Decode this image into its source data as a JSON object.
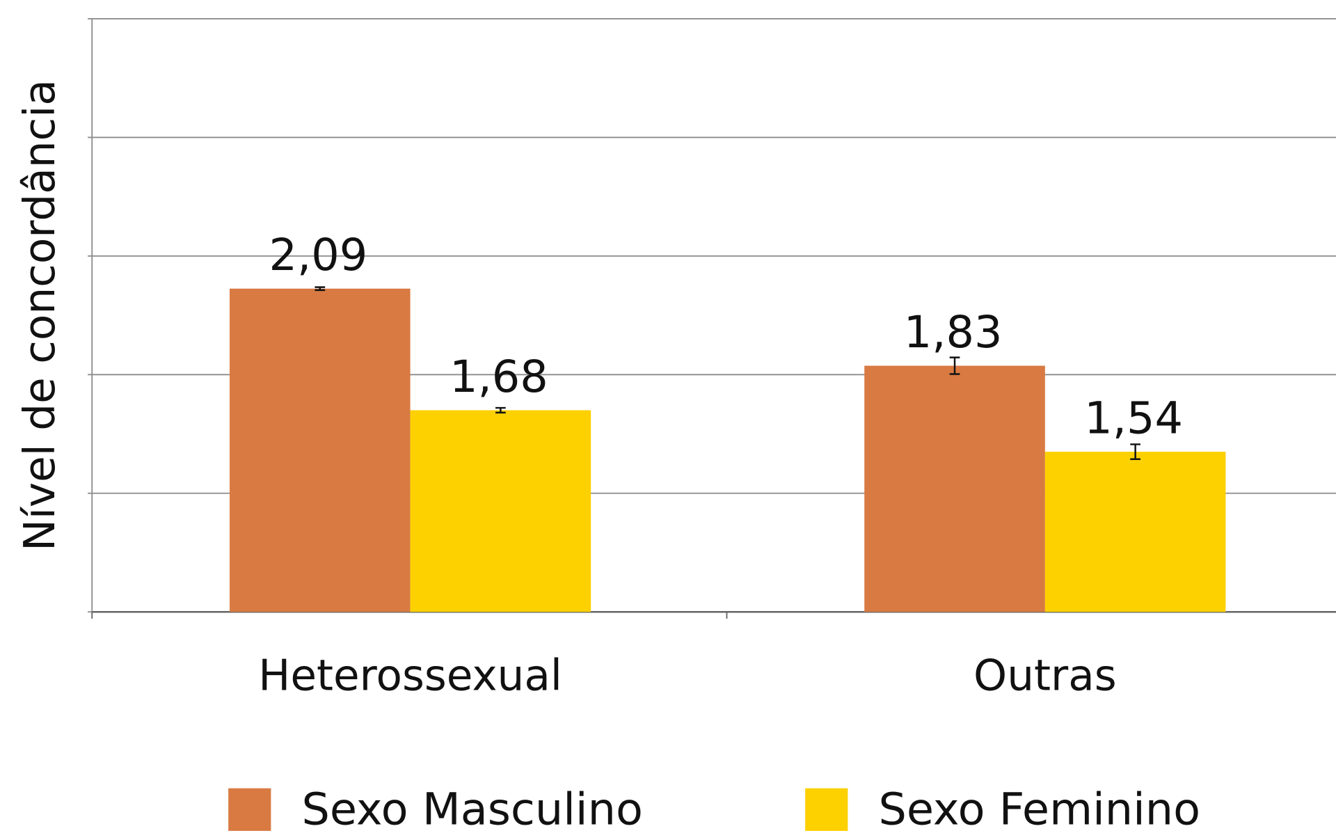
{
  "chart_data": {
    "type": "bar",
    "y_label": "Nível de concordância",
    "categories": [
      "Heterossexual",
      "Outras"
    ],
    "series": [
      {
        "name": "Sexo Masculino",
        "color": "#d87a42",
        "values": [
          2.09,
          1.83
        ],
        "value_labels": [
          "2,09",
          "1,83"
        ],
        "errors": [
          0.005,
          0.028
        ]
      },
      {
        "name": "Sexo Feminino",
        "color": "#fdd000",
        "values": [
          1.68,
          1.54
        ],
        "value_labels": [
          "1,68",
          "1,54"
        ],
        "errors": [
          0.008,
          0.025
        ]
      }
    ],
    "ylim": [
      1,
      3
    ],
    "yticks": [
      1,
      1.4,
      1.8,
      2.2,
      2.6,
      3
    ],
    "grid": true
  }
}
